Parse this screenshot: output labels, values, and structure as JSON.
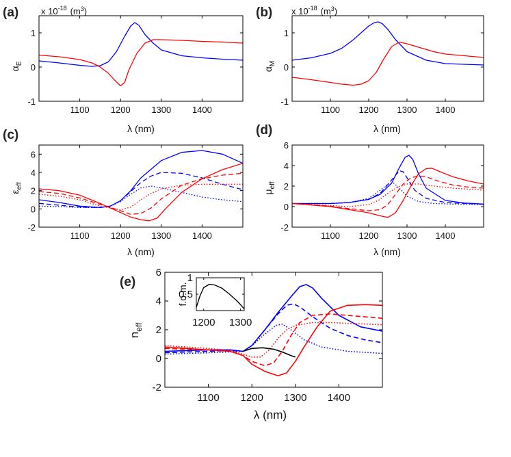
{
  "chart_data": [
    {
      "panel_label": "(a)",
      "type": "line",
      "scale_factor": "x 10",
      "scale_exponent": "-18",
      "scale_unit_open": "(m",
      "scale_unit_sup": "3",
      "scale_unit_close": ")",
      "ylabel_main": "α",
      "ylabel_sub": "E",
      "xlabel": "λ (nm)",
      "xlim": [
        1000,
        1500
      ],
      "ylim": [
        -1,
        1.5
      ],
      "xticks": [
        1100,
        1200,
        1300,
        1400
      ],
      "yticks": [
        -1,
        0,
        1
      ],
      "series": [
        {
          "color": "#0000ff",
          "dash": "solid",
          "x": [
            1000,
            1050,
            1100,
            1130,
            1150,
            1170,
            1190,
            1210,
            1225,
            1235,
            1245,
            1260,
            1280,
            1300,
            1350,
            1400,
            1450,
            1500
          ],
          "y": [
            0.18,
            0.12,
            0.05,
            0.02,
            0.04,
            0.15,
            0.45,
            0.9,
            1.2,
            1.3,
            1.22,
            0.95,
            0.7,
            0.5,
            0.33,
            0.27,
            0.23,
            0.2
          ]
        },
        {
          "color": "#ff0000",
          "dash": "solid",
          "x": [
            1000,
            1050,
            1100,
            1130,
            1150,
            1170,
            1185,
            1200,
            1210,
            1220,
            1240,
            1260,
            1280,
            1300,
            1350,
            1400,
            1450,
            1500
          ],
          "y": [
            0.35,
            0.3,
            0.22,
            0.12,
            0.0,
            -0.18,
            -0.38,
            -0.55,
            -0.45,
            -0.1,
            0.4,
            0.7,
            0.8,
            0.8,
            0.78,
            0.75,
            0.73,
            0.7
          ]
        }
      ]
    },
    {
      "panel_label": "(b)",
      "type": "line",
      "scale_factor": "x 10",
      "scale_exponent": "-18",
      "scale_unit_open": "(m",
      "scale_unit_sup": "3",
      "scale_unit_close": ")",
      "ylabel_main": "α",
      "ylabel_sub": "M",
      "xlabel": "λ (nm)",
      "xlim": [
        1000,
        1500
      ],
      "ylim": [
        -1,
        1.5
      ],
      "xticks": [
        1100,
        1200,
        1300,
        1400
      ],
      "yticks": [
        -1,
        0,
        1
      ],
      "series": [
        {
          "color": "#0000ff",
          "dash": "solid",
          "x": [
            1000,
            1050,
            1100,
            1130,
            1160,
            1180,
            1200,
            1215,
            1225,
            1235,
            1250,
            1270,
            1300,
            1350,
            1400,
            1450,
            1500
          ],
          "y": [
            0.2,
            0.27,
            0.4,
            0.55,
            0.8,
            1.0,
            1.2,
            1.3,
            1.32,
            1.27,
            1.1,
            0.8,
            0.45,
            0.2,
            0.1,
            0.08,
            0.06
          ]
        },
        {
          "color": "#ff0000",
          "dash": "solid",
          "x": [
            1000,
            1050,
            1100,
            1130,
            1160,
            1180,
            1200,
            1220,
            1240,
            1260,
            1280,
            1300,
            1330,
            1370,
            1400,
            1450,
            1500
          ],
          "y": [
            -0.3,
            -0.37,
            -0.45,
            -0.5,
            -0.53,
            -0.5,
            -0.4,
            -0.15,
            0.25,
            0.6,
            0.73,
            0.68,
            0.58,
            0.45,
            0.38,
            0.33,
            0.28
          ]
        }
      ]
    },
    {
      "panel_label": "(c)",
      "type": "line",
      "ylabel_main": "ε",
      "ylabel_sub": "eff",
      "xlabel": "λ (nm)",
      "xlim": [
        1000,
        1500
      ],
      "ylim": [
        -2,
        7
      ],
      "xticks": [
        1100,
        1200,
        1300,
        1400
      ],
      "yticks": [
        -2,
        0,
        2,
        4,
        6
      ],
      "series": [
        {
          "color": "#0000ff",
          "dash": "solid",
          "x": [
            1000,
            1050,
            1100,
            1150,
            1175,
            1200,
            1225,
            1250,
            1300,
            1350,
            1400,
            1450,
            1500
          ],
          "y": [
            1.0,
            0.7,
            0.3,
            0.15,
            0.3,
            0.9,
            2.0,
            3.4,
            5.3,
            6.2,
            6.4,
            6.0,
            5.0
          ]
        },
        {
          "color": "#0000ff",
          "dash": "dash",
          "x": [
            1000,
            1050,
            1100,
            1150,
            1175,
            1200,
            1225,
            1250,
            1275,
            1300,
            1350,
            1400,
            1450,
            1500
          ],
          "y": [
            0.6,
            0.4,
            0.2,
            0.15,
            0.3,
            0.9,
            1.9,
            2.9,
            3.6,
            4.0,
            3.9,
            3.4,
            2.7,
            2.1
          ]
        },
        {
          "color": "#0000ff",
          "dash": "dot",
          "x": [
            1000,
            1050,
            1100,
            1150,
            1175,
            1200,
            1225,
            1250,
            1275,
            1300,
            1350,
            1400,
            1450,
            1500
          ],
          "y": [
            0.3,
            0.25,
            0.15,
            0.15,
            0.3,
            0.8,
            1.6,
            2.3,
            2.5,
            2.3,
            1.8,
            1.3,
            1.0,
            0.8
          ]
        },
        {
          "color": "#ff0000",
          "dash": "solid",
          "x": [
            1000,
            1050,
            1100,
            1150,
            1200,
            1225,
            1250,
            1270,
            1290,
            1310,
            1350,
            1400,
            1450,
            1500
          ],
          "y": [
            2.2,
            2.0,
            1.5,
            0.6,
            -0.4,
            -0.9,
            -1.2,
            -1.3,
            -1.0,
            0.0,
            1.8,
            3.3,
            4.3,
            5.0
          ]
        },
        {
          "color": "#ff0000",
          "dash": "dash",
          "x": [
            1000,
            1050,
            1100,
            1150,
            1200,
            1225,
            1250,
            1275,
            1300,
            1350,
            1400,
            1450,
            1500
          ],
          "y": [
            1.9,
            1.7,
            1.2,
            0.5,
            -0.2,
            -0.6,
            -0.5,
            0.1,
            1.1,
            2.6,
            3.3,
            3.7,
            3.9
          ]
        },
        {
          "color": "#ff0000",
          "dash": "dot",
          "x": [
            1000,
            1050,
            1100,
            1150,
            1200,
            1225,
            1250,
            1275,
            1300,
            1350,
            1400,
            1450,
            1500
          ],
          "y": [
            1.6,
            1.4,
            1.0,
            0.3,
            -0.1,
            0.2,
            1.0,
            1.7,
            2.2,
            2.6,
            2.7,
            2.7,
            2.7
          ]
        }
      ]
    },
    {
      "panel_label": "(d)",
      "type": "line",
      "ylabel_main": "μ",
      "ylabel_sub": "eff",
      "xlabel": "λ (nm)",
      "xlim": [
        1000,
        1500
      ],
      "ylim": [
        -2,
        6
      ],
      "xticks": [
        1100,
        1200,
        1300,
        1400
      ],
      "yticks": [
        -2,
        0,
        2,
        4,
        6
      ],
      "series": [
        {
          "color": "#0000ff",
          "dash": "solid",
          "x": [
            1000,
            1100,
            1150,
            1200,
            1230,
            1260,
            1280,
            1295,
            1305,
            1315,
            1330,
            1350,
            1400,
            1450,
            1500
          ],
          "y": [
            0.3,
            0.3,
            0.4,
            0.7,
            1.2,
            2.3,
            3.8,
            4.8,
            5.0,
            4.6,
            3.2,
            1.8,
            0.6,
            0.35,
            0.25
          ]
        },
        {
          "color": "#0000ff",
          "dash": "dash",
          "x": [
            1000,
            1100,
            1150,
            1200,
            1230,
            1260,
            1280,
            1290,
            1300,
            1320,
            1350,
            1400,
            1450,
            1500
          ],
          "y": [
            0.3,
            0.3,
            0.4,
            0.7,
            1.3,
            2.6,
            3.5,
            3.4,
            2.8,
            1.6,
            0.8,
            0.4,
            0.3,
            0.25
          ]
        },
        {
          "color": "#0000ff",
          "dash": "dot",
          "x": [
            1000,
            1100,
            1150,
            1200,
            1230,
            1250,
            1265,
            1280,
            1300,
            1330,
            1370,
            1420,
            1500
          ],
          "y": [
            0.3,
            0.3,
            0.4,
            0.8,
            1.6,
            2.2,
            2.3,
            1.8,
            1.0,
            0.5,
            0.3,
            0.25,
            0.2
          ]
        },
        {
          "color": "#ff0000",
          "dash": "solid",
          "x": [
            1000,
            1100,
            1150,
            1200,
            1230,
            1250,
            1270,
            1290,
            1310,
            1330,
            1350,
            1365,
            1380,
            1420,
            1460,
            1500
          ],
          "y": [
            0.3,
            0.0,
            -0.3,
            -0.6,
            -0.9,
            -1.05,
            -0.6,
            0.6,
            2.0,
            3.2,
            3.7,
            3.75,
            3.5,
            2.9,
            2.5,
            2.2
          ]
        },
        {
          "color": "#ff0000",
          "dash": "dash",
          "x": [
            1000,
            1100,
            1150,
            1200,
            1230,
            1250,
            1270,
            1290,
            1310,
            1330,
            1350,
            1380,
            1420,
            1460,
            1500
          ],
          "y": [
            0.3,
            0.05,
            -0.2,
            -0.4,
            -0.3,
            0.2,
            1.2,
            2.2,
            2.8,
            3.0,
            2.9,
            2.5,
            2.1,
            1.9,
            1.8
          ]
        },
        {
          "color": "#ff0000",
          "dash": "dot",
          "x": [
            1000,
            1100,
            1150,
            1200,
            1225,
            1250,
            1275,
            1300,
            1330,
            1370,
            1420,
            1460,
            1500
          ],
          "y": [
            0.3,
            0.1,
            0.0,
            0.2,
            0.6,
            1.3,
            1.9,
            2.2,
            2.2,
            2.0,
            1.8,
            1.7,
            1.6
          ]
        }
      ]
    },
    {
      "panel_label": "(e)",
      "type": "line",
      "ylabel_main": "n",
      "ylabel_sub": "eff",
      "xlabel": "λ (nm)",
      "xlim": [
        1000,
        1500
      ],
      "ylim": [
        -2,
        6
      ],
      "xticks": [
        1100,
        1200,
        1300,
        1400
      ],
      "yticks": [
        -2,
        0,
        2,
        4,
        6
      ],
      "series": [
        {
          "color": "#0000ff",
          "dash": "solid",
          "x": [
            1000,
            1050,
            1100,
            1150,
            1180,
            1200,
            1230,
            1260,
            1290,
            1310,
            1325,
            1340,
            1360,
            1400,
            1450,
            1500
          ],
          "y": [
            0.5,
            0.55,
            0.6,
            0.6,
            0.5,
            0.9,
            2.0,
            3.2,
            4.3,
            5.0,
            5.15,
            4.9,
            4.2,
            3.0,
            2.2,
            1.9
          ]
        },
        {
          "color": "#0000ff",
          "dash": "dash",
          "x": [
            1000,
            1050,
            1100,
            1150,
            1180,
            1200,
            1230,
            1260,
            1280,
            1295,
            1310,
            1340,
            1380,
            1420,
            1460,
            1500
          ],
          "y": [
            0.4,
            0.45,
            0.5,
            0.55,
            0.5,
            0.9,
            2.0,
            3.1,
            3.7,
            3.8,
            3.6,
            2.9,
            2.1,
            1.6,
            1.3,
            1.1
          ]
        },
        {
          "color": "#0000ff",
          "dash": "dot",
          "x": [
            1000,
            1050,
            1100,
            1150,
            1180,
            1200,
            1230,
            1255,
            1270,
            1290,
            1320,
            1360,
            1420,
            1500
          ],
          "y": [
            0.3,
            0.35,
            0.4,
            0.45,
            0.5,
            0.9,
            1.7,
            2.3,
            2.4,
            2.0,
            1.3,
            0.8,
            0.5,
            0.35
          ]
        },
        {
          "color": "#ff0000",
          "dash": "solid",
          "x": [
            1000,
            1050,
            1100,
            1150,
            1180,
            1200,
            1230,
            1260,
            1280,
            1300,
            1320,
            1350,
            1380,
            1420,
            1460,
            1500
          ],
          "y": [
            0.8,
            0.7,
            0.6,
            0.5,
            0.2,
            -0.4,
            -0.9,
            -1.2,
            -1.0,
            -0.2,
            0.8,
            2.2,
            3.3,
            3.7,
            3.75,
            3.7
          ]
        },
        {
          "color": "#ff0000",
          "dash": "dash",
          "x": [
            1000,
            1050,
            1100,
            1150,
            1180,
            1200,
            1230,
            1250,
            1270,
            1290,
            1310,
            1340,
            1380,
            1420,
            1460,
            1500
          ],
          "y": [
            0.7,
            0.65,
            0.6,
            0.5,
            0.2,
            -0.2,
            -0.5,
            -0.3,
            0.5,
            1.6,
            2.5,
            3.0,
            3.1,
            3.0,
            2.9,
            2.8
          ]
        },
        {
          "color": "#ff0000",
          "dash": "dot",
          "x": [
            1000,
            1050,
            1100,
            1150,
            1180,
            1200,
            1220,
            1240,
            1260,
            1280,
            1300,
            1340,
            1380,
            1420,
            1460,
            1500
          ],
          "y": [
            0.9,
            0.8,
            0.7,
            0.55,
            0.3,
            0.1,
            0.1,
            0.6,
            1.4,
            2.0,
            2.3,
            2.5,
            2.5,
            2.45,
            2.4,
            2.35
          ]
        },
        {
          "color": "#000000",
          "dash": "solid",
          "x": [
            1180,
            1200,
            1225,
            1250,
            1270,
            1290,
            1300
          ],
          "y": [
            0.5,
            0.7,
            0.75,
            0.65,
            0.45,
            0.2,
            0.1
          ]
        }
      ],
      "inset": {
        "ylabel": "f.o.m.",
        "xlim": [
          1180,
          1310
        ],
        "ylim": [
          0,
          1
        ],
        "xticks": [
          1200,
          1300
        ],
        "yticks": [
          0.5,
          1
        ],
        "ytick_labels": [
          "0.5",
          "1"
        ],
        "xtick_labels": [
          "1200",
          "1300"
        ],
        "series": [
          {
            "color": "#000000",
            "dash": "solid",
            "x": [
              1180,
              1190,
              1200,
              1215,
              1230,
              1250,
              1270,
              1290,
              1300,
              1310
            ],
            "y": [
              0.1,
              0.45,
              0.7,
              0.8,
              0.78,
              0.68,
              0.5,
              0.3,
              0.18,
              0.05
            ]
          }
        ]
      }
    }
  ]
}
